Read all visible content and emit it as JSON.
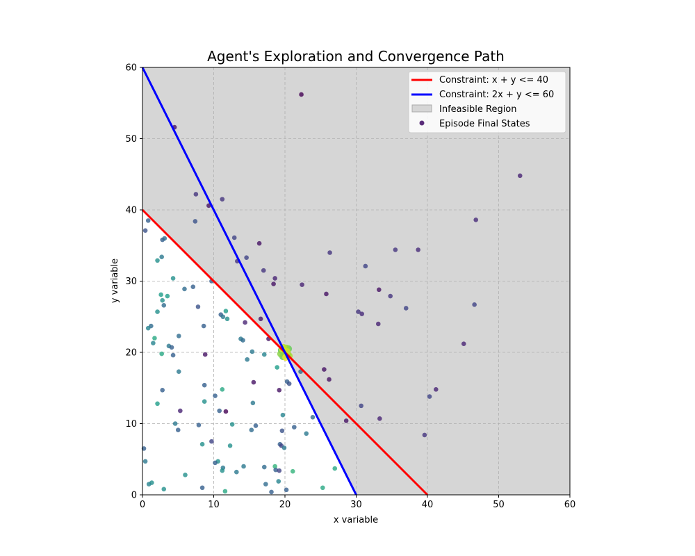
{
  "chart_data": {
    "type": "scatter",
    "title": "Agent's Exploration and Convergence Path",
    "xlabel": "x variable",
    "ylabel": "y variable",
    "xlim": [
      0,
      60
    ],
    "ylim": [
      0,
      60
    ],
    "xticks": [
      0,
      10,
      20,
      30,
      40,
      50,
      60
    ],
    "yticks": [
      0,
      10,
      20,
      30,
      40,
      50,
      60
    ],
    "grid": true,
    "legend_position": "top-right",
    "colors": {
      "constraint1": "#ff0000",
      "constraint2": "#0000ff",
      "infeasible": "#d6d6d6",
      "legend_marker": "#5a2d7a",
      "converge": "#c8e020"
    },
    "constraints": [
      {
        "name": "Constraint: x + y <= 40",
        "points": [
          [
            0,
            40
          ],
          [
            40,
            0
          ]
        ]
      },
      {
        "name": "Constraint: 2x + y <= 60",
        "points": [
          [
            0,
            60
          ],
          [
            30,
            0
          ]
        ]
      }
    ],
    "infeasible_label": "Infeasible Region",
    "scatter_label": "Episode Final States",
    "convergence_point": [
      20,
      20
    ],
    "points": [
      [
        22.3,
        56.2,
        0.0
      ],
      [
        4.5,
        51.6,
        0.05
      ],
      [
        53.0,
        44.8,
        0.1
      ],
      [
        7.5,
        42.2,
        0.15
      ],
      [
        11.2,
        41.5,
        0.15
      ],
      [
        9.3,
        40.6,
        0.05
      ],
      [
        46.8,
        38.6,
        0.12
      ],
      [
        0.8,
        38.5,
        0.3
      ],
      [
        7.4,
        38.4,
        0.25
      ],
      [
        0.4,
        37.1,
        0.25
      ],
      [
        12.9,
        36.1,
        0.2
      ],
      [
        2.8,
        35.8,
        0.3
      ],
      [
        3.1,
        36.0,
        0.35
      ],
      [
        16.4,
        35.3,
        0.05
      ],
      [
        26.3,
        34.0,
        0.15
      ],
      [
        35.5,
        34.4,
        0.15
      ],
      [
        38.7,
        34.4,
        0.12
      ],
      [
        14.6,
        33.3,
        0.2
      ],
      [
        2.7,
        33.4,
        0.4
      ],
      [
        13.3,
        32.8,
        0.15
      ],
      [
        2.1,
        32.9,
        0.5
      ],
      [
        31.3,
        32.1,
        0.2
      ],
      [
        17.0,
        31.5,
        0.15
      ],
      [
        18.6,
        30.4,
        0.1
      ],
      [
        4.3,
        30.4,
        0.5
      ],
      [
        9.7,
        30.0,
        0.3
      ],
      [
        18.4,
        29.6,
        0.05
      ],
      [
        22.4,
        29.5,
        0.1
      ],
      [
        7.1,
        29.2,
        0.3
      ],
      [
        5.9,
        28.9,
        0.35
      ],
      [
        33.2,
        28.8,
        0.05
      ],
      [
        25.8,
        28.2,
        0.05
      ],
      [
        2.6,
        28.1,
        0.55
      ],
      [
        3.5,
        27.9,
        0.55
      ],
      [
        34.8,
        27.9,
        0.15
      ],
      [
        2.8,
        27.3,
        0.5
      ],
      [
        46.6,
        26.7,
        0.2
      ],
      [
        3.0,
        26.6,
        0.35
      ],
      [
        7.8,
        26.4,
        0.25
      ],
      [
        37.0,
        26.2,
        0.2
      ],
      [
        11.7,
        25.8,
        0.55
      ],
      [
        2.1,
        25.7,
        0.5
      ],
      [
        30.3,
        25.7,
        0.15
      ],
      [
        30.8,
        25.4,
        0.12
      ],
      [
        11.0,
        25.3,
        0.3
      ],
      [
        11.3,
        25.0,
        0.4
      ],
      [
        11.9,
        24.7,
        0.5
      ],
      [
        16.6,
        24.7,
        0.05
      ],
      [
        14.4,
        24.2,
        0.1
      ],
      [
        33.1,
        24.0,
        0.1
      ],
      [
        8.6,
        23.7,
        0.3
      ],
      [
        1.2,
        23.7,
        0.35
      ],
      [
        0.8,
        23.4,
        0.45
      ],
      [
        5.1,
        22.3,
        0.35
      ],
      [
        1.7,
        22.0,
        0.6
      ],
      [
        17.7,
        21.9,
        0.05
      ],
      [
        13.8,
        21.9,
        0.4
      ],
      [
        14.1,
        21.7,
        0.35
      ],
      [
        45.1,
        21.2,
        0.1
      ],
      [
        1.5,
        21.3,
        0.45
      ],
      [
        3.7,
        20.9,
        0.4
      ],
      [
        4.1,
        20.7,
        0.3
      ],
      [
        15.4,
        20.1,
        0.4
      ],
      [
        2.7,
        19.8,
        0.6
      ],
      [
        8.8,
        19.7,
        0.05
      ],
      [
        17.1,
        19.7,
        0.45
      ],
      [
        4.3,
        19.6,
        0.3
      ],
      [
        14.7,
        19.0,
        0.4
      ],
      [
        18.9,
        17.9,
        0.55
      ],
      [
        25.5,
        17.6,
        0.05
      ],
      [
        22.2,
        17.3,
        0.35
      ],
      [
        5.1,
        17.3,
        0.4
      ],
      [
        26.2,
        16.2,
        0.05
      ],
      [
        20.3,
        15.9,
        0.3
      ],
      [
        15.6,
        15.8,
        0.05
      ],
      [
        20.6,
        15.6,
        0.25
      ],
      [
        8.7,
        15.4,
        0.3
      ],
      [
        11.2,
        14.8,
        0.6
      ],
      [
        2.8,
        14.7,
        0.3
      ],
      [
        19.2,
        14.7,
        0.05
      ],
      [
        41.2,
        14.8,
        0.1
      ],
      [
        10.2,
        13.9,
        0.3
      ],
      [
        40.3,
        13.8,
        0.2
      ],
      [
        8.7,
        13.1,
        0.5
      ],
      [
        15.5,
        12.9,
        0.4
      ],
      [
        2.1,
        12.8,
        0.55
      ],
      [
        30.7,
        12.5,
        0.2
      ],
      [
        5.3,
        11.8,
        0.1
      ],
      [
        10.8,
        11.8,
        0.3
      ],
      [
        11.7,
        11.7,
        0.0
      ],
      [
        19.7,
        11.2,
        0.45
      ],
      [
        23.9,
        10.9,
        0.35
      ],
      [
        33.3,
        10.7,
        0.1
      ],
      [
        28.6,
        10.4,
        0.05
      ],
      [
        12.6,
        9.9,
        0.5
      ],
      [
        4.6,
        10.0,
        0.4
      ],
      [
        7.9,
        9.8,
        0.3
      ],
      [
        15.9,
        9.7,
        0.3
      ],
      [
        21.3,
        9.5,
        0.3
      ],
      [
        5.0,
        9.1,
        0.3
      ],
      [
        15.3,
        9.1,
        0.35
      ],
      [
        19.6,
        9.0,
        0.25
      ],
      [
        23.0,
        8.6,
        0.4
      ],
      [
        39.6,
        8.4,
        0.15
      ],
      [
        9.7,
        7.5,
        0.2
      ],
      [
        8.4,
        7.1,
        0.5
      ],
      [
        12.3,
        6.9,
        0.5
      ],
      [
        19.3,
        7.1,
        0.3
      ],
      [
        19.5,
        6.9,
        0.2
      ],
      [
        19.9,
        6.6,
        0.4
      ],
      [
        0.2,
        6.5,
        0.3
      ],
      [
        10.6,
        4.7,
        0.5
      ],
      [
        10.2,
        4.5,
        0.3
      ],
      [
        0.4,
        4.7,
        0.4
      ],
      [
        18.6,
        4.0,
        0.65
      ],
      [
        14.2,
        4.0,
        0.4
      ],
      [
        17.1,
        3.9,
        0.35
      ],
      [
        11.3,
        3.8,
        0.4
      ],
      [
        11.2,
        3.4,
        0.5
      ],
      [
        18.7,
        3.5,
        0.3
      ],
      [
        19.2,
        3.4,
        0.2
      ],
      [
        13.2,
        3.2,
        0.4
      ],
      [
        21.1,
        3.3,
        0.65
      ],
      [
        27.0,
        3.7,
        0.6
      ],
      [
        6.0,
        2.8,
        0.5
      ],
      [
        19.1,
        1.9,
        0.45
      ],
      [
        1.3,
        1.7,
        0.5
      ],
      [
        0.9,
        1.5,
        0.45
      ],
      [
        17.3,
        1.5,
        0.35
      ],
      [
        8.4,
        1.0,
        0.3
      ],
      [
        3.0,
        0.8,
        0.5
      ],
      [
        25.3,
        1.0,
        0.6
      ],
      [
        11.6,
        0.5,
        0.6
      ],
      [
        18.1,
        0.4,
        0.3
      ],
      [
        20.2,
        0.7,
        0.3
      ]
    ]
  }
}
